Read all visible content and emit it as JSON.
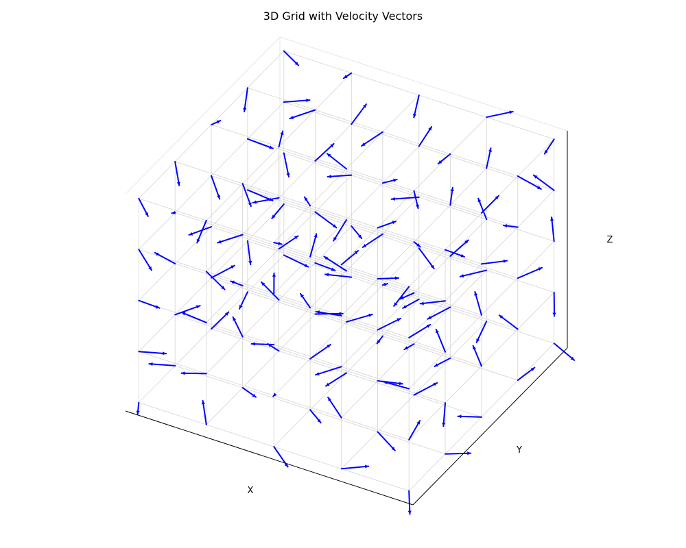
{
  "chart_data": {
    "type": "quiver3d",
    "title": "3D Grid with Velocity Vectors",
    "xlabel": "X",
    "ylabel": "Y",
    "zlabel": "Z",
    "grid": true,
    "ticks_visible": false,
    "grid_shape": [
      5,
      5,
      5
    ],
    "xlim": [
      0,
      1
    ],
    "ylim": [
      0,
      1
    ],
    "zlim": [
      0,
      1
    ],
    "vector_color": "#0000ff",
    "grid_color": "#d3d3d3",
    "pane_edge_color": "#e6e6e6",
    "axis_line_color": "#000000"
  }
}
